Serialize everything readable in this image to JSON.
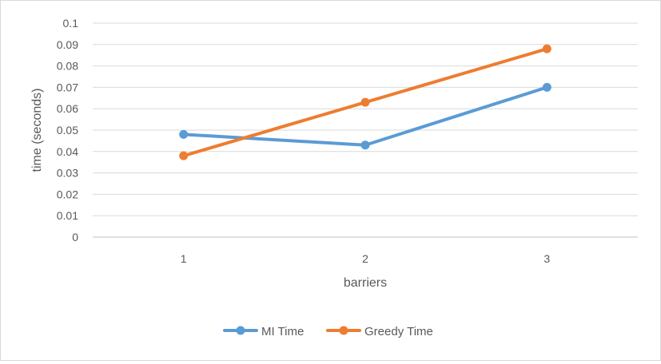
{
  "chart_data": {
    "type": "line",
    "title": "",
    "xlabel": "barriers",
    "ylabel": "time (seconds)",
    "categories": [
      "1",
      "2",
      "3"
    ],
    "y_ticks": [
      "0",
      "0.01",
      "0.02",
      "0.03",
      "0.04",
      "0.05",
      "0.06",
      "0.07",
      "0.08",
      "0.09",
      "0.1"
    ],
    "ylim": [
      0,
      0.1
    ],
    "grid": true,
    "legend_position": "bottom",
    "series": [
      {
        "name": "MI Time",
        "values": [
          0.048,
          0.043,
          0.07
        ],
        "color": "#5b9bd5"
      },
      {
        "name": "Greedy Time",
        "values": [
          0.038,
          0.063,
          0.088
        ],
        "color": "#ed7d31"
      }
    ],
    "gridline_color": "#d9d9d9",
    "axis_line_color": "#bfbfbf"
  }
}
